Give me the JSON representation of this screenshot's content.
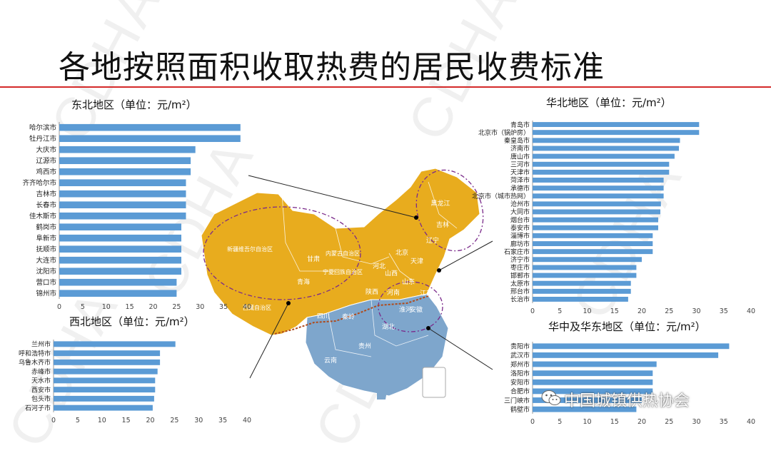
{
  "slide": {
    "title": "各地按照面积收取热费的居民收费标准",
    "watermark": "CDHA",
    "footer_brand": "中国城镇供热协会"
  },
  "colors": {
    "bar": "#5b9bd5",
    "title_rule": "#d42a2a",
    "map_north": "#e8ac1e",
    "map_south": "#7ea6cc",
    "boundary": "#7a2a8a"
  },
  "map": {
    "labels": [
      "黑龙江",
      "吉林",
      "辽宁",
      "北京",
      "天津",
      "河北",
      "山西",
      "山东",
      "内蒙古自治区",
      "甘肃",
      "宁夏回族自治区",
      "陕西",
      "河南",
      "江苏",
      "安徽",
      "湖北",
      "淮河",
      "秦岭",
      "四川",
      "贵州",
      "云南",
      "青海",
      "新疆维吾尔自治区",
      "西藏自治区"
    ]
  },
  "chart_data": [
    {
      "type": "bar",
      "orientation": "horizontal",
      "title": "东北地区（单位：元/m²）",
      "categories": [
        "哈尔滨市",
        "牡丹江市",
        "大庆市",
        "辽源市",
        "鸡西市",
        "齐齐哈尔市",
        "吉林市",
        "长春市",
        "佳木斯市",
        "鹤岗市",
        "阜新市",
        "抚顺市",
        "大连市",
        "沈阳市",
        "营口市",
        "锦州市"
      ],
      "values": [
        38.6,
        38.6,
        29,
        28,
        28,
        27,
        27,
        27,
        27,
        26,
        26,
        26,
        26,
        26,
        25,
        25
      ],
      "xlim": [
        0,
        40
      ],
      "ticks": [
        0,
        5,
        10,
        15,
        20,
        25,
        30,
        35,
        40
      ],
      "grid": false
    },
    {
      "type": "bar",
      "orientation": "horizontal",
      "title": "华北地区（单位：元/m²）",
      "categories": [
        "青岛市",
        "北京市（锅炉房）",
        "秦皇岛市",
        "济南市",
        "唐山市",
        "三河市",
        "天津市",
        "菏泽市",
        "承德市",
        "北京市（城市热网）",
        "沧州市",
        "大同市",
        "烟台市",
        "泰安市",
        "淄博市",
        "廊坊市",
        "石家庄市",
        "济宁市",
        "枣庄市",
        "邯郸市",
        "太原市",
        "邢台市",
        "长治市"
      ],
      "values": [
        30.5,
        30.5,
        27,
        26.8,
        26,
        25,
        25,
        24,
        24,
        24,
        23.5,
        23.4,
        23,
        23,
        22,
        22,
        22,
        20,
        19,
        19,
        18,
        18,
        17.5
      ],
      "xlim": [
        0,
        40
      ],
      "ticks": [
        0,
        5,
        10,
        15,
        20,
        25,
        30,
        35,
        40
      ],
      "grid": false
    },
    {
      "type": "bar",
      "orientation": "horizontal",
      "title": "西北地区（单位：元/m²）",
      "categories": [
        "兰州市",
        "呼和浩特市",
        "乌鲁木齐市",
        "赤峰市",
        "天水市",
        "西安市",
        "包头市",
        "石河子市"
      ],
      "values": [
        25.2,
        22,
        22,
        21.5,
        21,
        21,
        20.8,
        20.5
      ],
      "xlim": [
        0,
        40
      ],
      "ticks": [
        0,
        5,
        10,
        15,
        20,
        25,
        30,
        35,
        40
      ],
      "grid": false
    },
    {
      "type": "bar",
      "orientation": "horizontal",
      "title": "华中及华东地区（单位：元/m²）",
      "categories": [
        "贵阳市",
        "武汉市",
        "郑州市",
        "洛阳市",
        "安阳市",
        "合肥市",
        "三门峡市",
        "鹤壁市"
      ],
      "values": [
        36,
        34,
        22.7,
        22,
        22,
        22,
        20,
        19
      ],
      "xlim": [
        0,
        40
      ],
      "ticks": [
        0,
        5,
        10,
        15,
        20,
        25,
        30,
        35,
        40
      ],
      "grid": false
    }
  ]
}
